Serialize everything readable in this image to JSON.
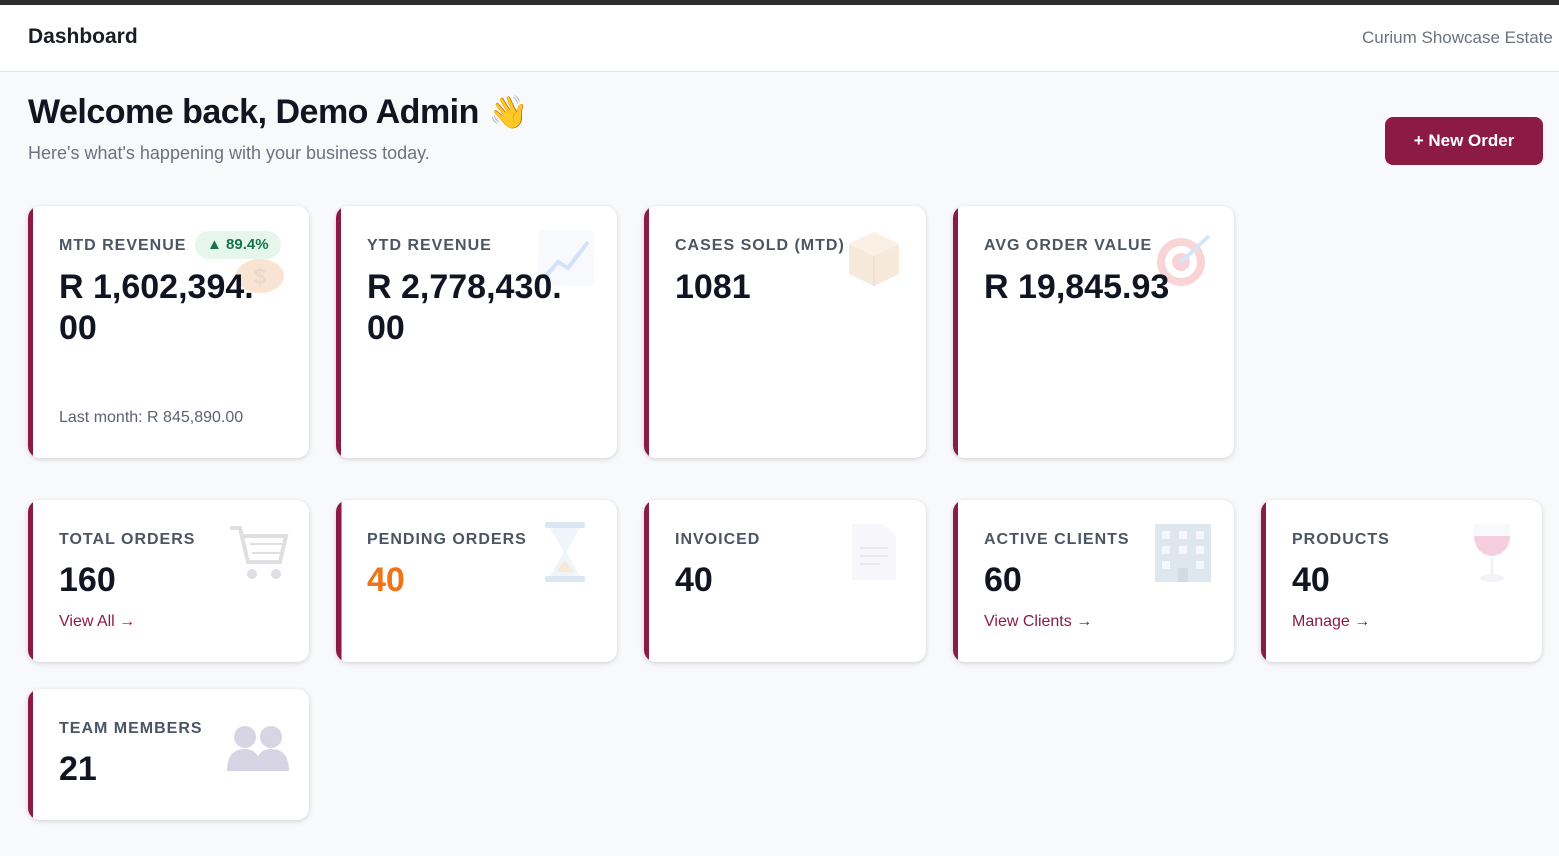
{
  "header": {
    "title": "Dashboard",
    "organization": "Curium Showcase Estate"
  },
  "welcome": {
    "title": "Welcome back, Demo Admin",
    "emoji": "👋",
    "subtitle": "Here's what's happening with your business today."
  },
  "actions": {
    "new_order_label": "+ New Order"
  },
  "kpi": {
    "mtd_revenue": {
      "label": "MTD REVENUE",
      "value": "R 1,602,394.00",
      "badge": "▲ 89.4%",
      "note": "Last month: R 845,890.00",
      "icon": "money-bag-icon"
    },
    "ytd_revenue": {
      "label": "YTD REVENUE",
      "value": "R 2,778,430.00",
      "icon": "chart-up-icon"
    },
    "cases_sold": {
      "label": "CASES SOLD (MTD)",
      "value": "1081",
      "icon": "package-icon"
    },
    "avg_order": {
      "label": "AVG ORDER VALUE",
      "value": "R 19,845.93",
      "icon": "target-icon"
    }
  },
  "stats": {
    "total_orders": {
      "label": "TOTAL ORDERS",
      "value": "160",
      "link": "View All →",
      "icon": "cart-icon"
    },
    "pending_orders": {
      "label": "PENDING ORDERS",
      "value": "40",
      "icon": "hourglass-icon"
    },
    "invoiced": {
      "label": "INVOICED",
      "value": "40",
      "icon": "document-icon"
    },
    "active_clients": {
      "label": "ACTIVE CLIENTS",
      "value": "60",
      "link": "View Clients →",
      "icon": "building-icon"
    },
    "products": {
      "label": "PRODUCTS",
      "value": "40",
      "link": "Manage →",
      "icon": "wine-glass-icon"
    },
    "team_members": {
      "label": "TEAM MEMBERS",
      "value": "21",
      "icon": "people-icon"
    }
  },
  "colors": {
    "brand": "#8b1a45",
    "pending": "#f07318",
    "positive": "#157347"
  }
}
